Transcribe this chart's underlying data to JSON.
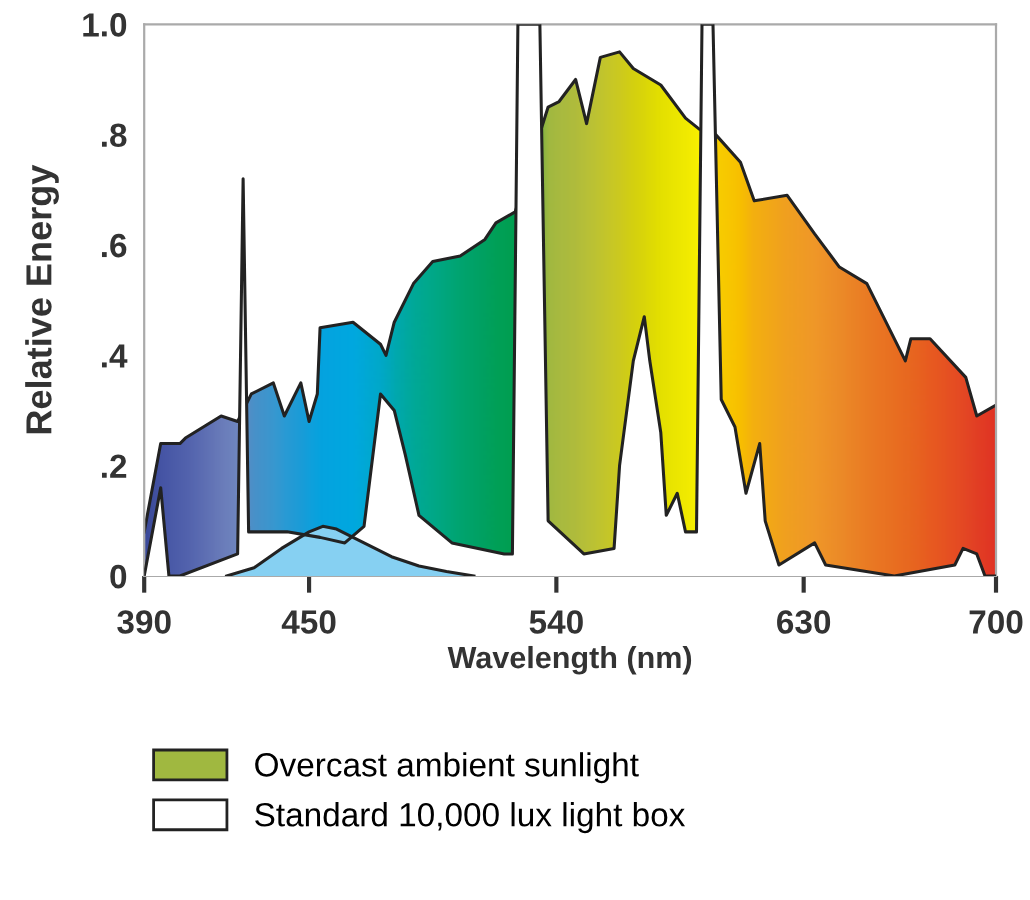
{
  "chart_data": {
    "type": "area",
    "xlabel": "Wavelength (nm)",
    "ylabel": "Relative Energy",
    "xlim": [
      390,
      700
    ],
    "xticks": [
      390,
      450,
      540,
      630,
      700
    ],
    "ylim": [
      0,
      1.0
    ],
    "yticks": [
      {
        "value": 0,
        "label": "0"
      },
      {
        "value": 0.2,
        "label": ".2"
      },
      {
        "value": 0.4,
        "label": ".4"
      },
      {
        "value": 0.6,
        "label": ".6"
      },
      {
        "value": 0.8,
        "label": ".8"
      },
      {
        "value": 1.0,
        "label": "1.0"
      }
    ],
    "legend": "bottom",
    "series": [
      {
        "name": "Overcast ambient sunlight",
        "x": [
          390,
          396,
          403,
          405,
          418,
          424,
          429,
          437,
          441,
          447,
          450,
          453,
          454,
          466,
          476,
          478,
          481,
          488,
          495,
          505,
          514,
          518,
          525,
          537,
          541,
          547,
          551,
          556,
          563,
          568,
          578,
          587,
          592,
          598,
          607,
          612,
          624,
          634,
          643,
          653,
          667,
          669,
          676,
          689,
          693,
          700
        ],
        "values": [
          0.08,
          0.24,
          0.24,
          0.25,
          0.29,
          0.28,
          0.33,
          0.35,
          0.29,
          0.35,
          0.28,
          0.33,
          0.45,
          0.46,
          0.42,
          0.4,
          0.46,
          0.53,
          0.57,
          0.58,
          0.61,
          0.64,
          0.66,
          0.85,
          0.86,
          0.9,
          0.82,
          0.94,
          0.95,
          0.92,
          0.89,
          0.83,
          0.81,
          0.8,
          0.75,
          0.68,
          0.69,
          0.62,
          0.56,
          0.53,
          0.39,
          0.43,
          0.43,
          0.36,
          0.29,
          0.31
        ],
        "colors": [
          "#3b4a9a",
          "#4655a5",
          "#5060ab",
          "#5262ad",
          "#6a7cba",
          "#7088c0",
          "#4a90c8",
          "#3898d0",
          "#2a9ad4",
          "#1a9cd8",
          "#10a0dc",
          "#08a2de",
          "#05a3df",
          "#00a8e0",
          "#00a8c8",
          "#00a8c0",
          "#00a8b0",
          "#00a898",
          "#00a888",
          "#00a470",
          "#00a060",
          "#00a058",
          "#009e50",
          "#a0b840",
          "#a8ba40",
          "#b0bc3c",
          "#b8c038",
          "#c0c430",
          "#ccca20",
          "#d4d010",
          "#e4e000",
          "#f0ea00",
          "#f8f000",
          "#f8d000",
          "#f8c000",
          "#f4b010",
          "#f0a020",
          "#f09828",
          "#ec8c28",
          "#ea7c24",
          "#e86a20",
          "#e86820",
          "#e85c20",
          "#e44824",
          "#e24024",
          "#e03424"
        ]
      },
      {
        "name": "Standard 10,000 lux light box",
        "type": "line",
        "color": "#222222",
        "x": [
          390,
          396,
          399,
          403,
          424,
          426,
          428,
          442,
          454,
          463,
          470,
          476,
          481,
          485,
          490,
          502,
          521,
          524,
          526,
          534,
          537,
          550,
          561,
          563,
          568,
          572,
          574,
          578,
          580,
          584,
          587,
          591,
          593,
          597,
          600,
          605,
          609,
          614,
          616,
          621,
          634,
          638,
          663,
          685,
          688,
          693,
          696,
          700
        ],
        "values": [
          0.0,
          0.16,
          0.0,
          0.0,
          0.04,
          0.72,
          0.08,
          0.08,
          0.07,
          0.06,
          0.09,
          0.33,
          0.3,
          0.22,
          0.11,
          0.06,
          0.04,
          0.04,
          1.0,
          1.0,
          0.1,
          0.04,
          0.05,
          0.2,
          0.39,
          0.47,
          0.39,
          0.26,
          0.11,
          0.15,
          0.08,
          0.08,
          1.0,
          1.0,
          0.32,
          0.27,
          0.15,
          0.24,
          0.1,
          0.02,
          0.06,
          0.02,
          0.0,
          0.02,
          0.05,
          0.04,
          0.0,
          0.0
        ]
      },
      {
        "color": "#86d0f2",
        "x": [
          420,
          430,
          440,
          450,
          455,
          460,
          470,
          480,
          490,
          500,
          510
        ],
        "values": [
          0.0,
          0.015,
          0.05,
          0.08,
          0.09,
          0.085,
          0.06,
          0.035,
          0.018,
          0.008,
          0.0
        ]
      }
    ]
  }
}
